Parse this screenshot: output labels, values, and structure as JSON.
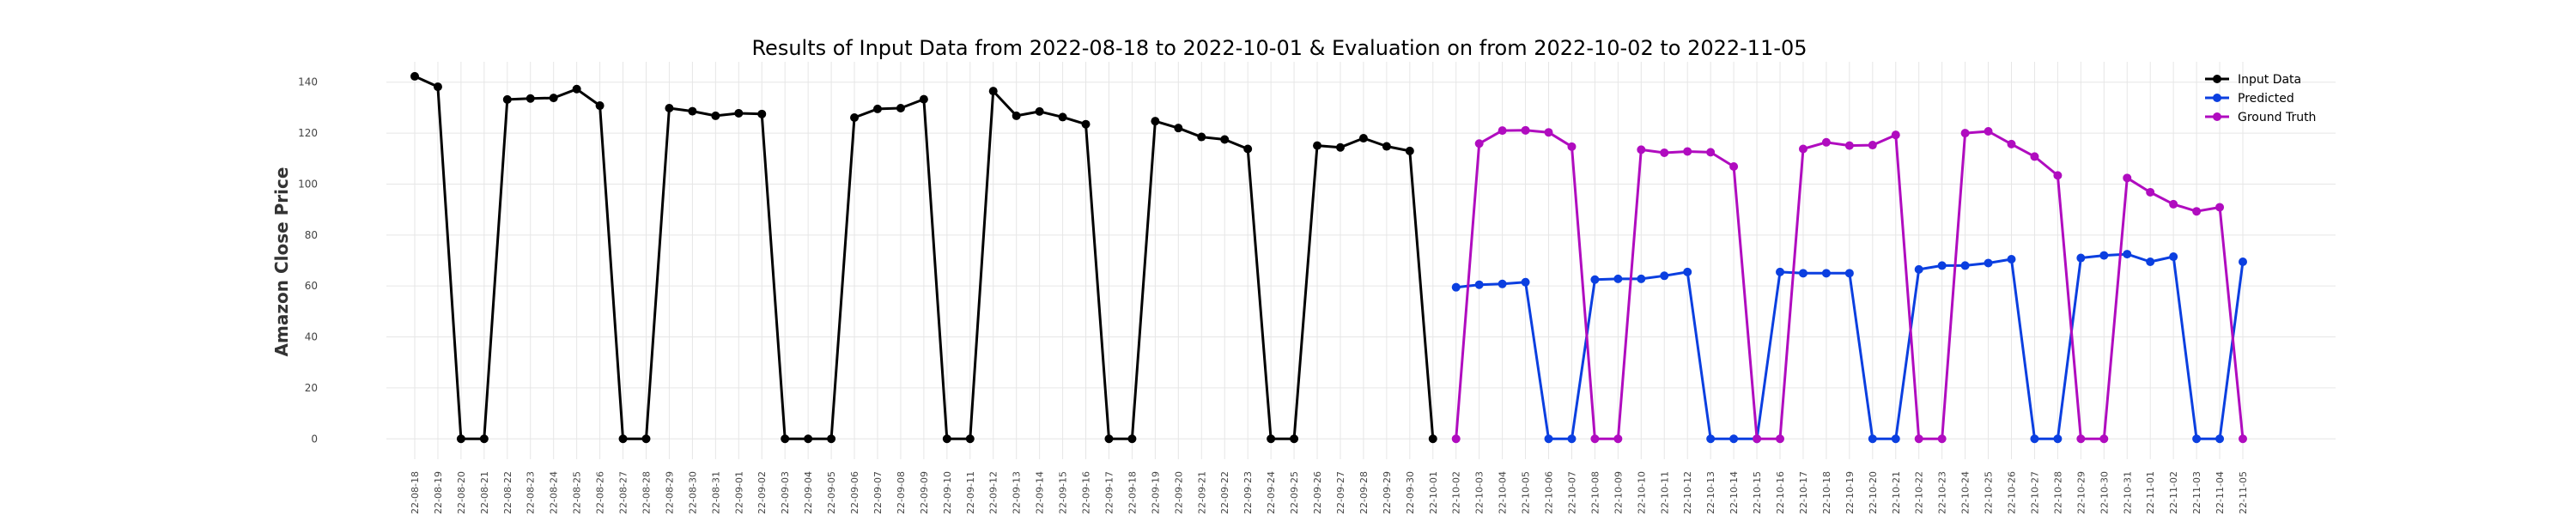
{
  "chart_data": {
    "type": "line",
    "title": "Results of Input Data from 2022-08-18 to 2022-10-01 & Evaluation on from 2022-10-02 to 2022-11-05",
    "xlabel": "",
    "ylabel": "Amazon Close Price",
    "ylim": [
      -8,
      148
    ],
    "yticks": [
      0,
      20,
      40,
      60,
      80,
      100,
      120,
      140
    ],
    "grid": true,
    "legend": "top-right",
    "x_tick_prefix": "'22-",
    "categories": [
      "2022-08-18",
      "2022-08-19",
      "2022-08-20",
      "2022-08-21",
      "2022-08-22",
      "2022-08-23",
      "2022-08-24",
      "2022-08-25",
      "2022-08-26",
      "2022-08-27",
      "2022-08-28",
      "2022-08-29",
      "2022-08-30",
      "2022-08-31",
      "2022-09-01",
      "2022-09-02",
      "2022-09-03",
      "2022-09-04",
      "2022-09-05",
      "2022-09-06",
      "2022-09-07",
      "2022-09-08",
      "2022-09-09",
      "2022-09-10",
      "2022-09-11",
      "2022-09-12",
      "2022-09-13",
      "2022-09-14",
      "2022-09-15",
      "2022-09-16",
      "2022-09-17",
      "2022-09-18",
      "2022-09-19",
      "2022-09-20",
      "2022-09-21",
      "2022-09-22",
      "2022-09-23",
      "2022-09-24",
      "2022-09-25",
      "2022-09-26",
      "2022-09-27",
      "2022-09-28",
      "2022-09-29",
      "2022-09-30",
      "2022-10-01",
      "2022-10-02",
      "2022-10-03",
      "2022-10-04",
      "2022-10-05",
      "2022-10-06",
      "2022-10-07",
      "2022-10-08",
      "2022-10-09",
      "2022-10-10",
      "2022-10-11",
      "2022-10-12",
      "2022-10-13",
      "2022-10-14",
      "2022-10-15",
      "2022-10-16",
      "2022-10-17",
      "2022-10-18",
      "2022-10-19",
      "2022-10-20",
      "2022-10-21",
      "2022-10-22",
      "2022-10-23",
      "2022-10-24",
      "2022-10-25",
      "2022-10-26",
      "2022-10-27",
      "2022-10-28",
      "2022-10-29",
      "2022-10-30",
      "2022-10-31",
      "2022-11-01",
      "2022-11-02",
      "2022-11-03",
      "2022-11-04",
      "2022-11-05"
    ],
    "series": [
      {
        "name": "Input Data",
        "color": "#000000",
        "x": [
          "2022-08-18",
          "2022-08-19",
          "2022-08-20",
          "2022-08-21",
          "2022-08-22",
          "2022-08-23",
          "2022-08-24",
          "2022-08-25",
          "2022-08-26",
          "2022-08-27",
          "2022-08-28",
          "2022-08-29",
          "2022-08-30",
          "2022-08-31",
          "2022-09-01",
          "2022-09-02",
          "2022-09-03",
          "2022-09-04",
          "2022-09-05",
          "2022-09-06",
          "2022-09-07",
          "2022-09-08",
          "2022-09-09",
          "2022-09-10",
          "2022-09-11",
          "2022-09-12",
          "2022-09-13",
          "2022-09-14",
          "2022-09-15",
          "2022-09-16",
          "2022-09-17",
          "2022-09-18",
          "2022-09-19",
          "2022-09-20",
          "2022-09-21",
          "2022-09-22",
          "2022-09-23",
          "2022-09-24",
          "2022-09-25",
          "2022-09-26",
          "2022-09-27",
          "2022-09-28",
          "2022-09-29",
          "2022-09-30",
          "2022-10-01"
        ],
        "values": [
          142.3,
          138.2,
          0,
          0,
          133.2,
          133.6,
          133.8,
          137.3,
          130.8,
          0,
          0,
          129.8,
          128.6,
          126.8,
          127.8,
          127.5,
          0,
          0,
          0,
          126.1,
          129.5,
          129.8,
          133.3,
          0,
          0,
          136.5,
          126.8,
          128.5,
          126.3,
          123.5,
          0,
          0,
          124.7,
          122.0,
          118.5,
          117.5,
          113.8,
          0,
          0,
          115.1,
          114.4,
          118.0,
          114.8,
          113.0,
          0
        ]
      },
      {
        "name": "Predicted",
        "color": "#0b3fe0",
        "x": [
          "2022-10-02",
          "2022-10-03",
          "2022-10-04",
          "2022-10-05",
          "2022-10-06",
          "2022-10-07",
          "2022-10-08",
          "2022-10-09",
          "2022-10-10",
          "2022-10-11",
          "2022-10-12",
          "2022-10-13",
          "2022-10-14",
          "2022-10-15",
          "2022-10-16",
          "2022-10-17",
          "2022-10-18",
          "2022-10-19",
          "2022-10-20",
          "2022-10-21",
          "2022-10-22",
          "2022-10-23",
          "2022-10-24",
          "2022-10-25",
          "2022-10-26",
          "2022-10-27",
          "2022-10-28",
          "2022-10-29",
          "2022-10-30",
          "2022-10-31",
          "2022-11-01",
          "2022-11-02",
          "2022-11-03",
          "2022-11-04",
          "2022-11-05"
        ],
        "values": [
          59.5,
          60.5,
          60.8,
          61.5,
          0,
          0,
          62.5,
          62.8,
          62.8,
          64.0,
          65.5,
          0,
          0,
          0,
          65.5,
          65.0,
          65.0,
          65.0,
          0,
          0,
          66.5,
          68.0,
          68.0,
          69.0,
          70.5,
          0,
          0,
          71.0,
          72.0,
          72.5,
          69.5,
          71.5,
          0,
          0,
          69.5
        ]
      },
      {
        "name": "Ground Truth",
        "color": "#b00cbf",
        "x": [
          "2022-10-02",
          "2022-10-03",
          "2022-10-04",
          "2022-10-05",
          "2022-10-06",
          "2022-10-07",
          "2022-10-08",
          "2022-10-09",
          "2022-10-10",
          "2022-10-11",
          "2022-10-12",
          "2022-10-13",
          "2022-10-14",
          "2022-10-15",
          "2022-10-16",
          "2022-10-17",
          "2022-10-18",
          "2022-10-19",
          "2022-10-20",
          "2022-10-21",
          "2022-10-22",
          "2022-10-23",
          "2022-10-24",
          "2022-10-25",
          "2022-10-26",
          "2022-10-27",
          "2022-10-28",
          "2022-10-29",
          "2022-10-30",
          "2022-10-31",
          "2022-11-01",
          "2022-11-02",
          "2022-11-03",
          "2022-11-04",
          "2022-11-05"
        ],
        "values": [
          0,
          115.9,
          121.0,
          121.1,
          120.3,
          114.7,
          0,
          0,
          113.5,
          112.3,
          112.8,
          112.5,
          106.9,
          0,
          0,
          113.8,
          116.4,
          115.1,
          115.3,
          119.3,
          0,
          0,
          120.0,
          120.7,
          115.7,
          110.8,
          103.4,
          0,
          0,
          102.4,
          96.8,
          92.1,
          89.3,
          90.9,
          0
        ]
      }
    ]
  }
}
